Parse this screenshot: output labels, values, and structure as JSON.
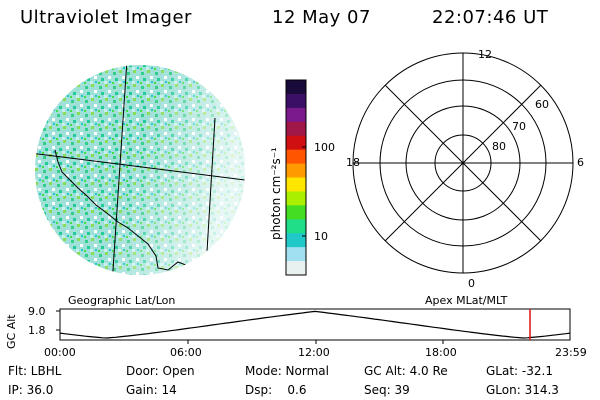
{
  "header": {
    "instrument": "Ultraviolet Imager",
    "date": "12 May 07",
    "time": "22:07:46 UT"
  },
  "image_panel": {
    "label": "Geographic Lat/Lon"
  },
  "colorbar": {
    "unit_label": "photon cm⁻²s⁻¹",
    "ticks": [
      "100",
      "10"
    ],
    "colors": [
      "#1a0a3a",
      "#3c0f66",
      "#7a1a8c",
      "#a01848",
      "#d01010",
      "#ff5500",
      "#ff9a00",
      "#ffe600",
      "#aaee00",
      "#44dd22",
      "#20dd88",
      "#20c8c8",
      "#a0e0f0",
      "#e8f0f0"
    ]
  },
  "polar_panel": {
    "label": "Apex MLat/MLT",
    "mlt_labels": {
      "top": "12",
      "bottom": "0",
      "left": "18",
      "right": "6"
    },
    "lat_labels": [
      "60",
      "70",
      "80"
    ]
  },
  "timeline": {
    "axis_label": "GC Alt",
    "y_ticks": [
      "9.0",
      "1.8"
    ],
    "x_ticks": [
      "00:00",
      "06:00",
      "12:00",
      "18:00",
      "23:59"
    ],
    "marker_color": "#dd1111"
  },
  "status": {
    "row1": [
      "Flt: LBHL",
      "Door: Open",
      "Mode: Normal",
      "GC Alt: 4.0 Re",
      "GLat: -32.1"
    ],
    "row2": [
      "IP: 36.0",
      "Gain: 14",
      "Dsp:    0.6",
      "Seq: 39",
      "GLon: 314.3"
    ]
  }
}
